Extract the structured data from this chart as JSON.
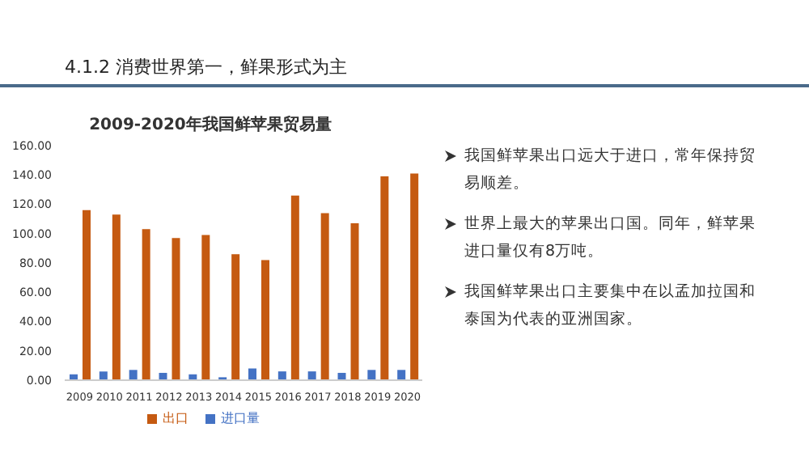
{
  "chart_data": {
    "type": "bar",
    "title": "4.1.2 消费世界第一，鲜果形式为主",
    "subtitle": "2009-2020年我国鲜苹果贸易量",
    "categories": [
      "2009",
      "2010",
      "2011",
      "2012",
      "2013",
      "2014",
      "2015",
      "2016",
      "2017",
      "2018",
      "2019",
      "2020"
    ],
    "series": [
      {
        "name": "进口量",
        "color": "#4472c4",
        "values": [
          4,
          6,
          7,
          5,
          4,
          2,
          8,
          6,
          6,
          5,
          7,
          7
        ]
      },
      {
        "name": "出口",
        "color": "#c55a11",
        "values": [
          116,
          113,
          103,
          97,
          99,
          86,
          82,
          126,
          114,
          107,
          139,
          141
        ]
      }
    ],
    "ylim": [
      0,
      160
    ],
    "yticks": [
      {
        "value": 0,
        "label": "0.00"
      },
      {
        "value": 20,
        "label": "20.00"
      },
      {
        "value": 40,
        "label": "40.00"
      },
      {
        "value": 60,
        "label": "60.00"
      },
      {
        "value": 80,
        "label": "80.00"
      },
      {
        "value": 100,
        "label": "100.00"
      },
      {
        "value": 120,
        "label": "120.00"
      },
      {
        "value": 140,
        "label": "140.00"
      },
      {
        "value": 160,
        "label": "160.00"
      }
    ],
    "legend": "bottom",
    "grid": false,
    "annotations": [
      "我国鲜苹果出口远大于进口，常年保持贸易顺差。",
      "世界上最大的苹果出口国。同年，鲜苹果进口量仅有8万吨。",
      "我国鲜苹果出口主要集中在以孟加拉国和泰国为代表的亚洲国家。"
    ]
  }
}
